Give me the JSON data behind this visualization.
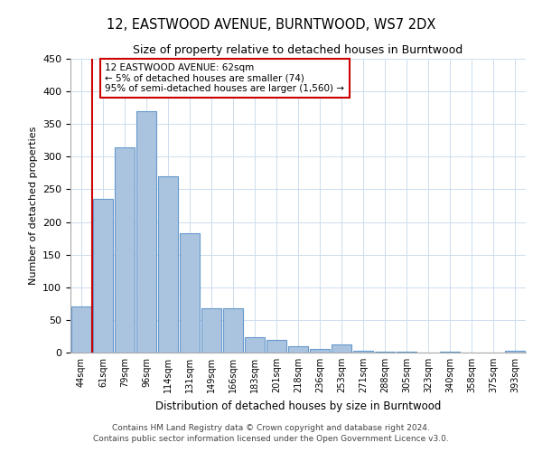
{
  "title": "12, EASTWOOD AVENUE, BURNTWOOD, WS7 2DX",
  "subtitle": "Size of property relative to detached houses in Burntwood",
  "xlabel": "Distribution of detached houses by size in Burntwood",
  "ylabel": "Number of detached properties",
  "bar_labels": [
    "44sqm",
    "61sqm",
    "79sqm",
    "96sqm",
    "114sqm",
    "131sqm",
    "149sqm",
    "166sqm",
    "183sqm",
    "201sqm",
    "218sqm",
    "236sqm",
    "253sqm",
    "271sqm",
    "288sqm",
    "305sqm",
    "323sqm",
    "340sqm",
    "358sqm",
    "375sqm",
    "393sqm"
  ],
  "bar_values": [
    70,
    235,
    315,
    370,
    270,
    183,
    68,
    68,
    23,
    20,
    10,
    5,
    12,
    3,
    1,
    1,
    0,
    1,
    0,
    0,
    3
  ],
  "bar_color": "#aac4e0",
  "bar_edge_color": "#6699cc",
  "property_line_x": 1,
  "property_line_color": "#cc0000",
  "ylim": [
    0,
    450
  ],
  "yticks": [
    0,
    50,
    100,
    150,
    200,
    250,
    300,
    350,
    400,
    450
  ],
  "annotation_text": "12 EASTWOOD AVENUE: 62sqm\n← 5% of detached houses are smaller (74)\n95% of semi-detached houses are larger (1,560) →",
  "footer_line1": "Contains HM Land Registry data © Crown copyright and database right 2024.",
  "footer_line2": "Contains public sector information licensed under the Open Government Licence v3.0.",
  "bg_color": "#ffffff",
  "grid_color": "#ccddee",
  "annotation_box_color": "#ffffff",
  "annotation_box_edge": "#cc0000"
}
